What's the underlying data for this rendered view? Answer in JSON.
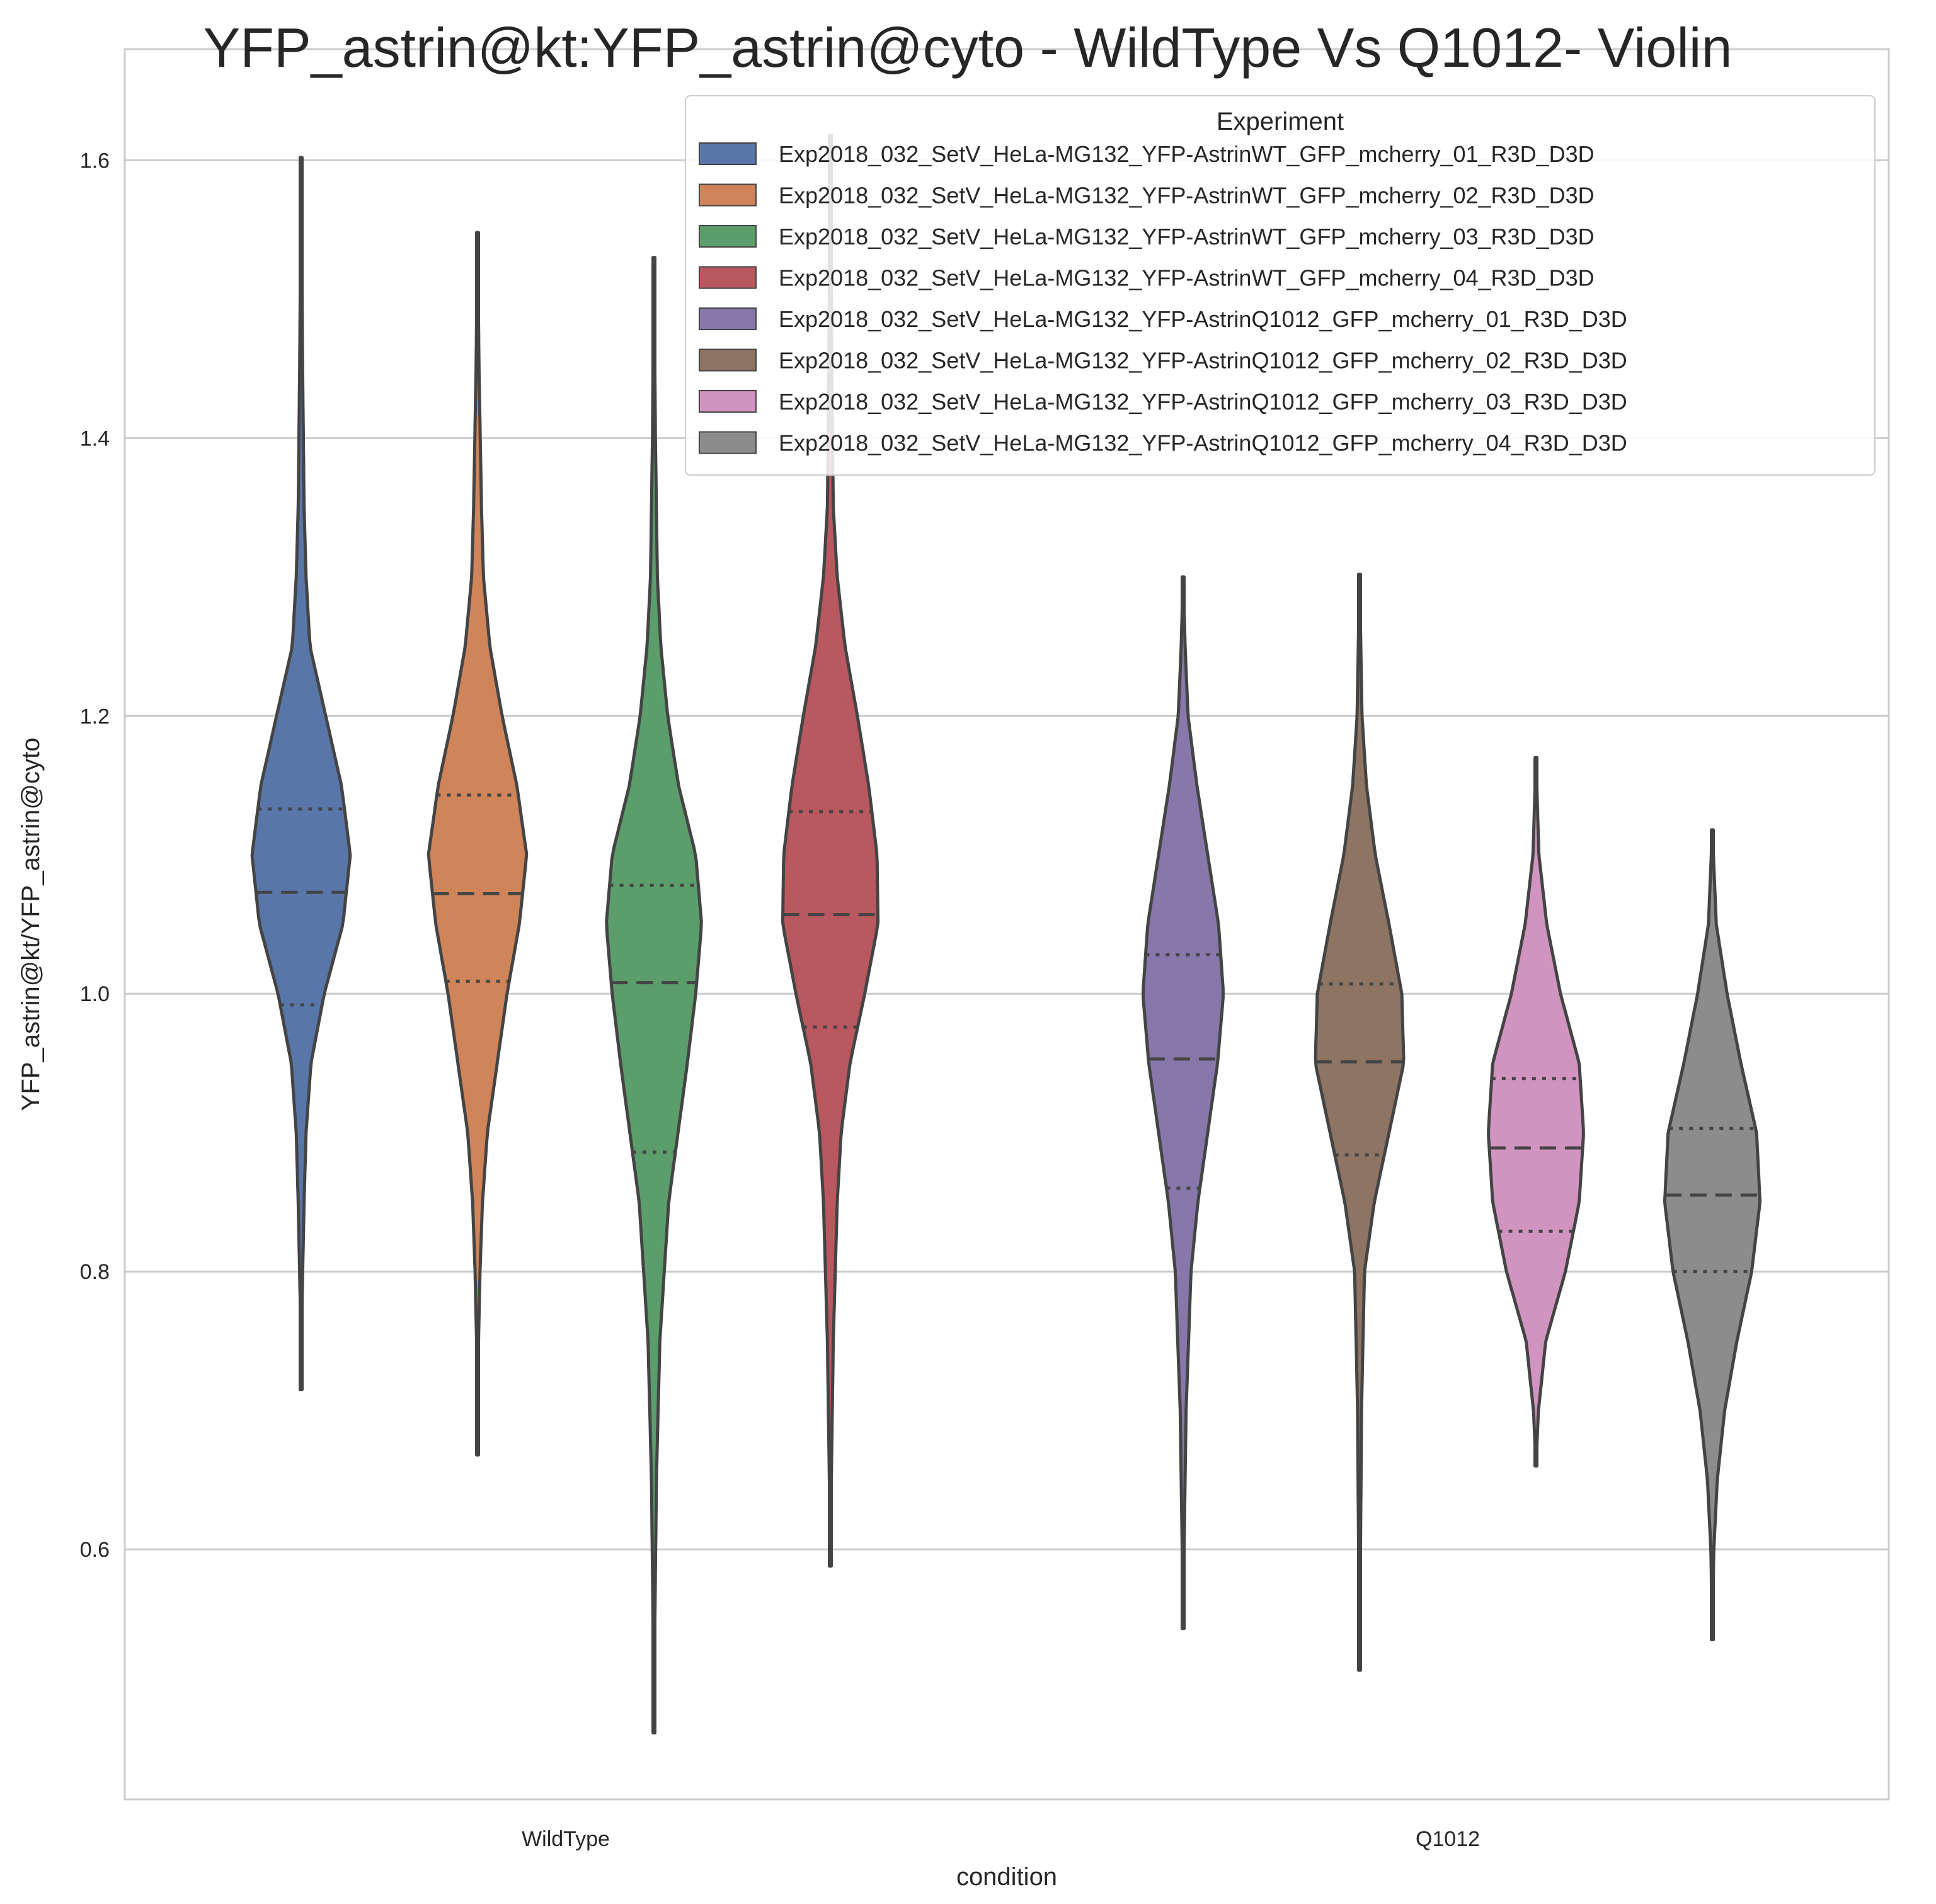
{
  "colors": {
    "background": "#ffffff",
    "grid": "#cccccc",
    "spine": "#cccccc",
    "outline": "#444444",
    "text": "#262626"
  },
  "chart_data": {
    "type": "violin",
    "title": "YFP_astrin@kt:YFP_astrin@cyto -  WildType Vs Q1012- Violin",
    "xlabel": "condition",
    "ylabel": "YFP_astrin@kt/YFP_astrin@cyto",
    "categories": [
      "WildType",
      "Q1012"
    ],
    "ylim": [
      0.42,
      1.68
    ],
    "yticks": [
      0.6,
      0.8,
      1.0,
      1.2,
      1.4,
      1.6
    ],
    "ytick_labels": [
      "0.6",
      "0.8",
      "1.0",
      "1.2",
      "1.4",
      "1.6"
    ],
    "grid": true,
    "inner": "quartile",
    "legend": {
      "title": "Experiment",
      "placement": "top-right"
    },
    "series": [
      {
        "name": "Exp2018_032_SetV_HeLa-MG132_YFP-AstrinWT_GFP_mcherry_01_R3D_D3D",
        "color": "#5976a9",
        "category": "WildType",
        "min": 0.715,
        "max": 1.602,
        "q1": 0.992,
        "median": 1.073,
        "q3": 1.133,
        "profile": [
          [
            0.715,
            0.0
          ],
          [
            0.78,
            0.02
          ],
          [
            0.85,
            0.06
          ],
          [
            0.9,
            0.1
          ],
          [
            0.95,
            0.2
          ],
          [
            1.0,
            0.47
          ],
          [
            1.05,
            0.85
          ],
          [
            1.1,
            1.0
          ],
          [
            1.15,
            0.82
          ],
          [
            1.2,
            0.5
          ],
          [
            1.25,
            0.18
          ],
          [
            1.3,
            0.1
          ],
          [
            1.35,
            0.06
          ],
          [
            1.45,
            0.03
          ],
          [
            1.55,
            0.01
          ],
          [
            1.602,
            0.0
          ]
        ]
      },
      {
        "name": "Exp2018_032_SetV_HeLa-MG132_YFP-AstrinWT_GFP_mcherry_02_R3D_D3D",
        "color": "#cf8559",
        "category": "WildType",
        "min": 0.668,
        "max": 1.548,
        "q1": 1.009,
        "median": 1.072,
        "q3": 1.143,
        "profile": [
          [
            0.668,
            0.0
          ],
          [
            0.75,
            0.02
          ],
          [
            0.8,
            0.05
          ],
          [
            0.85,
            0.1
          ],
          [
            0.9,
            0.2
          ],
          [
            0.95,
            0.4
          ],
          [
            1.0,
            0.6
          ],
          [
            1.05,
            0.85
          ],
          [
            1.1,
            1.0
          ],
          [
            1.15,
            0.8
          ],
          [
            1.2,
            0.5
          ],
          [
            1.25,
            0.25
          ],
          [
            1.3,
            0.12
          ],
          [
            1.35,
            0.08
          ],
          [
            1.45,
            0.03
          ],
          [
            1.548,
            0.0
          ]
        ]
      },
      {
        "name": "Exp2018_032_SetV_HeLa-MG132_YFP-AstrinWT_GFP_mcherry_03_R3D_D3D",
        "color": "#5b9d6b",
        "category": "WildType",
        "min": 0.468,
        "max": 1.53,
        "q1": 0.886,
        "median": 1.008,
        "q3": 1.078,
        "profile": [
          [
            0.468,
            0.0
          ],
          [
            0.55,
            0.02
          ],
          [
            0.65,
            0.05
          ],
          [
            0.75,
            0.12
          ],
          [
            0.85,
            0.3
          ],
          [
            0.95,
            0.68
          ],
          [
            1.0,
            0.85
          ],
          [
            1.05,
            0.97
          ],
          [
            1.1,
            0.85
          ],
          [
            1.15,
            0.5
          ],
          [
            1.2,
            0.28
          ],
          [
            1.25,
            0.14
          ],
          [
            1.3,
            0.07
          ],
          [
            1.4,
            0.03
          ],
          [
            1.53,
            0.0
          ]
        ]
      },
      {
        "name": "Exp2018_032_SetV_HeLa-MG132_YFP-AstrinWT_GFP_mcherry_04_R3D_D3D",
        "color": "#b9585f",
        "category": "WildType",
        "min": 0.588,
        "max": 1.618,
        "q1": 0.976,
        "median": 1.057,
        "q3": 1.131,
        "profile": [
          [
            0.588,
            0.0
          ],
          [
            0.65,
            0.02
          ],
          [
            0.75,
            0.06
          ],
          [
            0.85,
            0.14
          ],
          [
            0.9,
            0.22
          ],
          [
            0.95,
            0.4
          ],
          [
            1.0,
            0.7
          ],
          [
            1.05,
            0.97
          ],
          [
            1.1,
            0.95
          ],
          [
            1.15,
            0.78
          ],
          [
            1.2,
            0.55
          ],
          [
            1.25,
            0.3
          ],
          [
            1.3,
            0.14
          ],
          [
            1.35,
            0.06
          ],
          [
            1.45,
            0.03
          ],
          [
            1.618,
            0.0
          ]
        ]
      },
      {
        "name": "Exp2018_032_SetV_HeLa-MG132_YFP-AstrinQ1012_GFP_mcherry_01_R3D_D3D",
        "color": "#8778ac",
        "category": "Q1012",
        "min": 0.543,
        "max": 1.3,
        "q1": 0.86,
        "median": 0.953,
        "q3": 1.028,
        "profile": [
          [
            0.543,
            0.0
          ],
          [
            0.6,
            0.02
          ],
          [
            0.7,
            0.06
          ],
          [
            0.8,
            0.16
          ],
          [
            0.85,
            0.3
          ],
          [
            0.9,
            0.5
          ],
          [
            0.95,
            0.7
          ],
          [
            1.0,
            0.82
          ],
          [
            1.05,
            0.72
          ],
          [
            1.1,
            0.5
          ],
          [
            1.15,
            0.28
          ],
          [
            1.2,
            0.1
          ],
          [
            1.25,
            0.04
          ],
          [
            1.3,
            0.0
          ]
        ]
      },
      {
        "name": "Exp2018_032_SetV_HeLa-MG132_YFP-AstrinQ1012_GFP_mcherry_02_R3D_D3D",
        "color": "#8e7463",
        "category": "Q1012",
        "min": 0.513,
        "max": 1.302,
        "q1": 0.884,
        "median": 0.951,
        "q3": 1.007,
        "profile": [
          [
            0.513,
            0.0
          ],
          [
            0.6,
            0.02
          ],
          [
            0.7,
            0.04
          ],
          [
            0.8,
            0.1
          ],
          [
            0.85,
            0.3
          ],
          [
            0.9,
            0.6
          ],
          [
            0.95,
            0.9
          ],
          [
            1.0,
            0.86
          ],
          [
            1.05,
            0.6
          ],
          [
            1.1,
            0.32
          ],
          [
            1.15,
            0.14
          ],
          [
            1.2,
            0.05
          ],
          [
            1.302,
            0.0
          ]
        ]
      },
      {
        "name": "Exp2018_032_SetV_HeLa-MG132_YFP-AstrinQ1012_GFP_mcherry_03_R3D_D3D",
        "color": "#d194c0",
        "category": "Q1012",
        "min": 0.66,
        "max": 1.17,
        "q1": 0.829,
        "median": 0.889,
        "q3": 0.939,
        "profile": [
          [
            0.66,
            0.0
          ],
          [
            0.7,
            0.05
          ],
          [
            0.75,
            0.2
          ],
          [
            0.8,
            0.6
          ],
          [
            0.85,
            0.88
          ],
          [
            0.9,
            0.97
          ],
          [
            0.95,
            0.88
          ],
          [
            1.0,
            0.5
          ],
          [
            1.05,
            0.22
          ],
          [
            1.1,
            0.06
          ],
          [
            1.17,
            0.0
          ]
        ]
      },
      {
        "name": "Exp2018_032_SetV_HeLa-MG132_YFP-AstrinQ1012_GFP_mcherry_04_R3D_D3D",
        "color": "#8c8c8c",
        "category": "Q1012",
        "min": 0.535,
        "max": 1.118,
        "q1": 0.8,
        "median": 0.855,
        "q3": 0.903,
        "profile": [
          [
            0.535,
            0.0
          ],
          [
            0.6,
            0.03
          ],
          [
            0.65,
            0.1
          ],
          [
            0.7,
            0.25
          ],
          [
            0.75,
            0.5
          ],
          [
            0.8,
            0.8
          ],
          [
            0.85,
            0.97
          ],
          [
            0.9,
            0.9
          ],
          [
            0.95,
            0.58
          ],
          [
            1.0,
            0.3
          ],
          [
            1.05,
            0.08
          ],
          [
            1.118,
            0.0
          ]
        ]
      }
    ]
  }
}
